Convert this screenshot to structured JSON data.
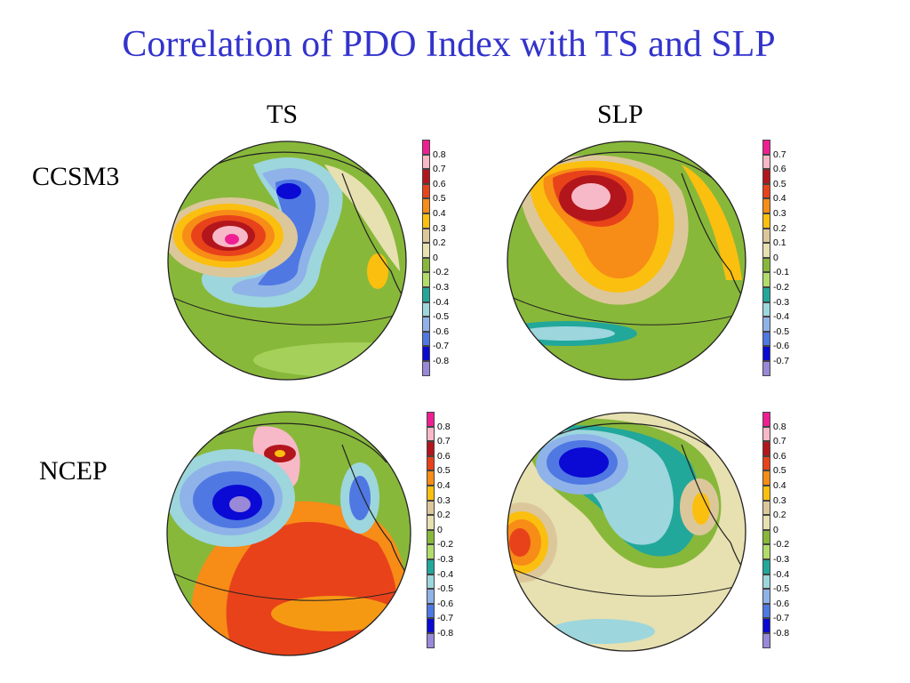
{
  "title": "Correlation of PDO Index with TS and SLP",
  "columns": [
    "TS",
    "SLP"
  ],
  "rows": [
    "CCSM3",
    "NCEP"
  ],
  "colors": {
    "title": "#3333cc",
    "scale": [
      "#ef1f93",
      "#f7b9c7",
      "#b2161c",
      "#e8421b",
      "#f78c17",
      "#fbbf0f",
      "#dcc79b",
      "#e7e0b0",
      "#88b83a",
      "#b2dc6a",
      "#22a79b",
      "#9dd6dd",
      "#8fb3e8",
      "#4f78e3",
      "#0a0ad4",
      "#9a88d8"
    ]
  },
  "panels": [
    {
      "row": "CCSM3",
      "column": "TS",
      "colorbar_ticks": [
        "0.8",
        "0.7",
        "0.6",
        "0.5",
        "0.4",
        "0.3",
        "0.2",
        "0",
        "-0.2",
        "-0.3",
        "-0.4",
        "-0.5",
        "-0.6",
        "-0.7",
        "-0.8"
      ]
    },
    {
      "row": "CCSM3",
      "column": "SLP",
      "colorbar_ticks": [
        "0.7",
        "0.6",
        "0.5",
        "0.4",
        "0.3",
        "0.2",
        "0.1",
        "0",
        "-0.1",
        "-0.2",
        "-0.3",
        "-0.4",
        "-0.5",
        "-0.6",
        "-0.7"
      ]
    },
    {
      "row": "NCEP",
      "column": "TS",
      "colorbar_ticks": [
        "0.8",
        "0.7",
        "0.6",
        "0.5",
        "0.4",
        "0.3",
        "0.2",
        "0",
        "-0.2",
        "-0.3",
        "-0.4",
        "-0.5",
        "-0.6",
        "-0.7",
        "-0.8"
      ]
    },
    {
      "row": "NCEP",
      "column": "SLP",
      "colorbar_ticks": [
        "0.8",
        "0.7",
        "0.6",
        "0.5",
        "0.4",
        "0.3",
        "0.2",
        "0",
        "-0.2",
        "-0.3",
        "-0.4",
        "-0.5",
        "-0.6",
        "-0.7",
        "-0.8"
      ]
    }
  ]
}
